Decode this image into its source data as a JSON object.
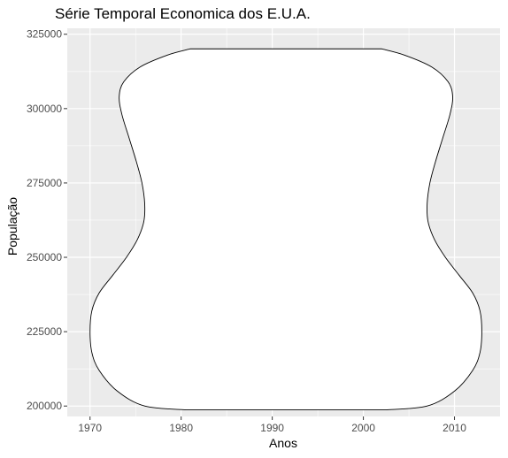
{
  "chart_data": {
    "type": "violin",
    "title": "Série Temporal Economica dos E.U.A.",
    "xlabel": "Anos",
    "ylabel": "População",
    "x_ticks": [
      1970,
      1980,
      1990,
      2000,
      2010
    ],
    "y_ticks": [
      200000,
      225000,
      250000,
      275000,
      300000,
      325000
    ],
    "y_tick_labels": [
      "200000",
      "225000",
      "250000",
      "275000",
      "300000",
      "325000"
    ],
    "x_tick_labels": [
      "1970",
      "1980",
      "1990",
      "2000",
      "2010"
    ],
    "xlim": [
      1967.5,
      2015
    ],
    "ylim": [
      196500,
      327000
    ],
    "violin": {
      "center_x": 1991.5,
      "y_range": [
        198712,
        320090
      ],
      "profile": [
        {
          "population": 198712,
          "half_width_years": 11.0
        },
        {
          "population": 200000,
          "half_width_years": 15.5
        },
        {
          "population": 205000,
          "half_width_years": 18.5
        },
        {
          "population": 212000,
          "half_width_years": 20.5
        },
        {
          "population": 218000,
          "half_width_years": 21.3
        },
        {
          "population": 225000,
          "half_width_years": 21.5
        },
        {
          "population": 232000,
          "half_width_years": 21.3
        },
        {
          "population": 238000,
          "half_width_years": 20.5
        },
        {
          "population": 244000,
          "half_width_years": 19.0
        },
        {
          "population": 250000,
          "half_width_years": 17.5
        },
        {
          "population": 256000,
          "half_width_years": 16.3
        },
        {
          "population": 262000,
          "half_width_years": 15.6
        },
        {
          "population": 268000,
          "half_width_years": 15.5
        },
        {
          "population": 275000,
          "half_width_years": 15.8
        },
        {
          "population": 282000,
          "half_width_years": 16.4
        },
        {
          "population": 290000,
          "half_width_years": 17.2
        },
        {
          "population": 298000,
          "half_width_years": 18.0
        },
        {
          "population": 304000,
          "half_width_years": 18.3
        },
        {
          "population": 309000,
          "half_width_years": 17.8
        },
        {
          "population": 314000,
          "half_width_years": 16.0
        },
        {
          "population": 318000,
          "half_width_years": 13.0
        },
        {
          "population": 320090,
          "half_width_years": 10.5
        }
      ]
    },
    "grid": true,
    "background": "#ebebeb",
    "grid_color": "#ffffff",
    "fill_color": "#ffffff",
    "outline_color": "#000000"
  }
}
